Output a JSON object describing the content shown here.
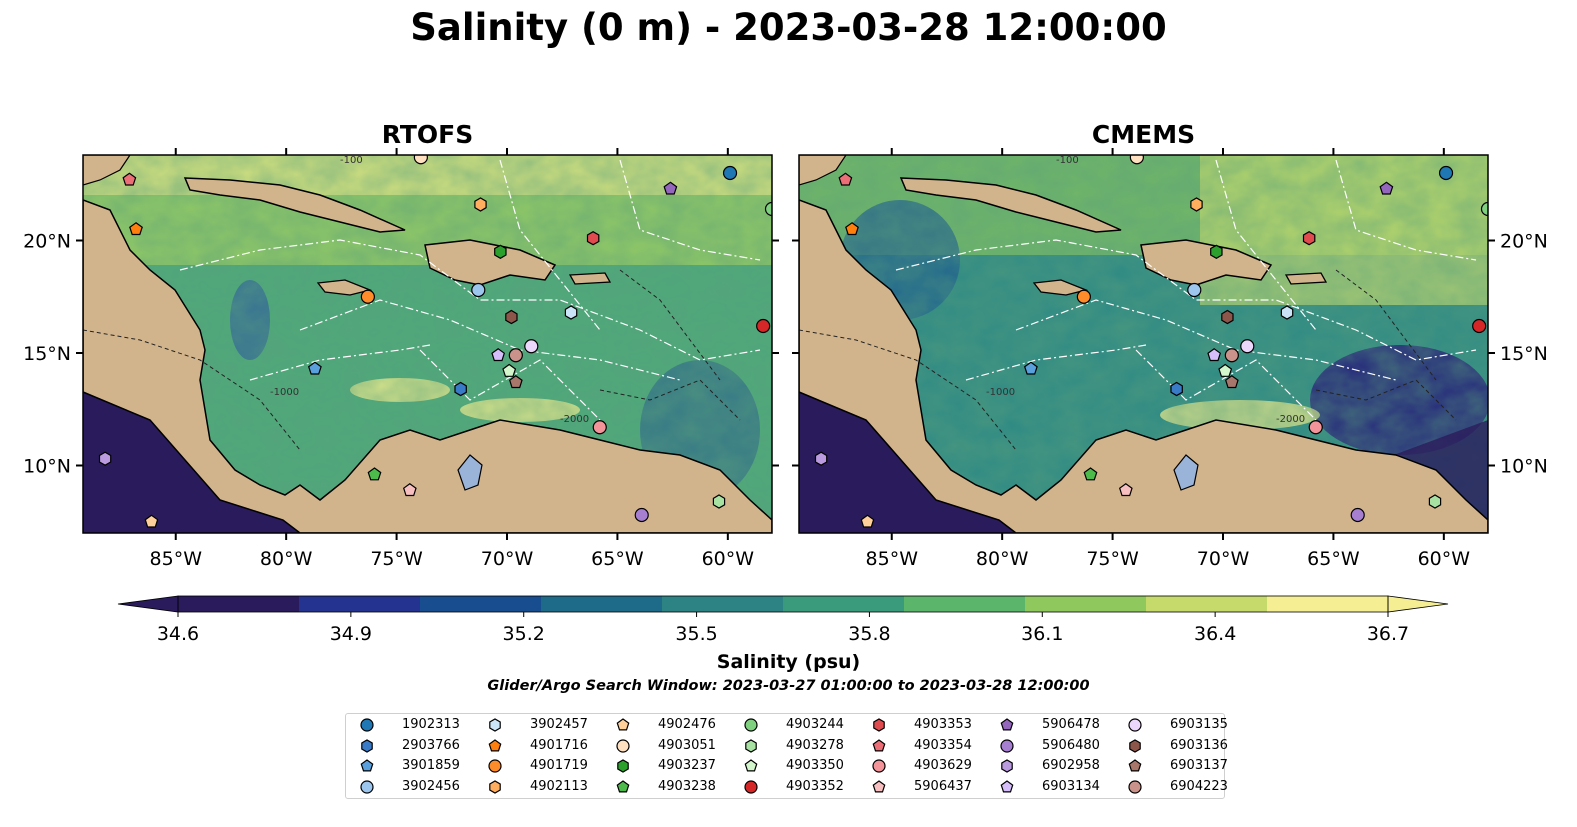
{
  "title": "Salinity (0 m) - 2023-03-28 12:00:00",
  "panels": [
    {
      "id": "rtofs",
      "title": "RTOFS",
      "model": "RTOFS"
    },
    {
      "id": "cmems",
      "title": "CMEMS",
      "model": "CMEMS"
    }
  ],
  "map": {
    "lon_range": [
      -89.2,
      -58.0
    ],
    "lat_range": [
      7.0,
      23.8
    ],
    "lon_ticks": [
      -85,
      -80,
      -75,
      -70,
      -65,
      -60
    ],
    "lon_tick_labels": [
      "85°W",
      "80°W",
      "75°W",
      "70°W",
      "65°W",
      "60°W"
    ],
    "lat_ticks": [
      10,
      15,
      20
    ],
    "lat_tick_labels": [
      "10°N",
      "15°N",
      "20°N"
    ],
    "contour_labels": [
      "-100",
      "-1000",
      "-2000"
    ],
    "colors": {
      "land": "#d2b48c",
      "rivers": "#9ab3d8",
      "eez_lines": "#ffffff",
      "contours": "#222222"
    }
  },
  "colorbar": {
    "label": "Salinity (psu)",
    "min": 34.6,
    "max": 36.7,
    "ticks": [
      "34.6",
      "34.9",
      "35.2",
      "35.5",
      "35.8",
      "36.1",
      "36.4",
      "36.7"
    ],
    "extend": "both",
    "colormap": [
      "#2a1b5c",
      "#24338f",
      "#184d8f",
      "#1e6a89",
      "#2d8384",
      "#3a9a7c",
      "#5bb56a",
      "#8fc95e",
      "#c5da6b",
      "#f6ee93"
    ]
  },
  "search_window": "Glider/Argo Search Window: 2023-03-27 01:00:00 to 2023-03-28 12:00:00",
  "legend": [
    {
      "id": "1902313",
      "marker": "circle",
      "color": "#1f77b4",
      "lon": -59.9,
      "lat": 23.0
    },
    {
      "id": "2903766",
      "marker": "hexagon",
      "color": "#3a7bc8",
      "lon": -72.1,
      "lat": 13.4
    },
    {
      "id": "3901859",
      "marker": "pentagon",
      "color": "#5aa0dc",
      "lon": -78.7,
      "lat": 14.3
    },
    {
      "id": "3902456",
      "marker": "circle",
      "color": "#9dc6ee",
      "lon": -71.3,
      "lat": 17.8
    },
    {
      "id": "3902457",
      "marker": "hexagon",
      "color": "#cce4f7",
      "lon": -67.1,
      "lat": 16.8
    },
    {
      "id": "4901716",
      "marker": "pentagon",
      "color": "#ff7f0e",
      "lon": -86.8,
      "lat": 20.5
    },
    {
      "id": "4901719",
      "marker": "circle",
      "color": "#ff8c2a",
      "lon": -76.3,
      "lat": 17.5
    },
    {
      "id": "4902113",
      "marker": "hexagon",
      "color": "#ffad5e",
      "lon": -71.2,
      "lat": 21.6
    },
    {
      "id": "4902476",
      "marker": "pentagon",
      "color": "#ffd09a",
      "lon": -86.1,
      "lat": 7.5
    },
    {
      "id": "4903051",
      "marker": "circle",
      "color": "#ffe1c1",
      "lon": -73.9,
      "lat": 23.7
    },
    {
      "id": "4903237",
      "marker": "hexagon",
      "color": "#2ca02c",
      "lon": -70.3,
      "lat": 19.5
    },
    {
      "id": "4903238",
      "marker": "pentagon",
      "color": "#4cbb4c",
      "lon": -76.0,
      "lat": 9.6
    },
    {
      "id": "4903244",
      "marker": "circle",
      "color": "#7fd17f",
      "lon": -58.0,
      "lat": 21.4
    },
    {
      "id": "4903278",
      "marker": "hexagon",
      "color": "#a8e2a3",
      "lon": -60.4,
      "lat": 8.4
    },
    {
      "id": "4903350",
      "marker": "pentagon",
      "color": "#d4f6cc",
      "lon": -69.9,
      "lat": 14.2
    },
    {
      "id": "4903352",
      "marker": "circle",
      "color": "#d62728",
      "lon": -58.4,
      "lat": 16.2
    },
    {
      "id": "4903353",
      "marker": "hexagon",
      "color": "#e04b50",
      "lon": -66.1,
      "lat": 20.1
    },
    {
      "id": "4903354",
      "marker": "pentagon",
      "color": "#ec6f78",
      "lon": -87.1,
      "lat": 22.7
    },
    {
      "id": "4903629",
      "marker": "circle",
      "color": "#f2949a",
      "lon": -65.8,
      "lat": 11.7
    },
    {
      "id": "5906437",
      "marker": "pentagon",
      "color": "#f8bfc0",
      "lon": -74.4,
      "lat": 8.9
    },
    {
      "id": "5906478",
      "marker": "pentagon",
      "color": "#9467bd",
      "lon": -62.6,
      "lat": 22.3
    },
    {
      "id": "5906480",
      "marker": "circle",
      "color": "#a77fd0",
      "lon": -63.9,
      "lat": 7.8
    },
    {
      "id": "6902958",
      "marker": "hexagon",
      "color": "#bb9be0",
      "lon": -88.2,
      "lat": 10.3
    },
    {
      "id": "6903134",
      "marker": "pentagon",
      "color": "#d5befa",
      "lon": -70.4,
      "lat": 14.9
    },
    {
      "id": "6903135",
      "marker": "circle",
      "color": "#ead7fb",
      "lon": -68.9,
      "lat": 15.3
    },
    {
      "id": "6903136",
      "marker": "hexagon",
      "color": "#8c564b",
      "lon": -69.8,
      "lat": 16.6
    },
    {
      "id": "6903137",
      "marker": "pentagon",
      "color": "#a8766b",
      "lon": -69.6,
      "lat": 13.7
    },
    {
      "id": "6904223",
      "marker": "circle",
      "color": "#c9928a",
      "lon": -69.6,
      "lat": 14.9
    }
  ]
}
